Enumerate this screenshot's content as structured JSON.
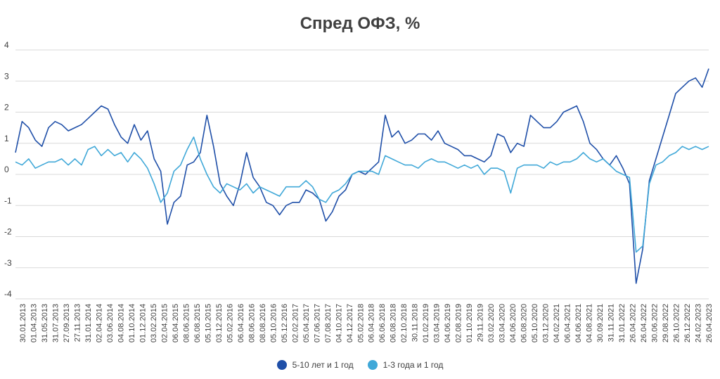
{
  "chart_data": {
    "type": "line",
    "title": "Спред ОФЗ, %",
    "ylim": [
      -4,
      4
    ],
    "y_ticks": [
      "4",
      "3",
      "2",
      "1",
      "0",
      "-1",
      "-2",
      "-3",
      "-4"
    ],
    "grid": "horizontal",
    "legend_position": "bottom",
    "x_tick_labels": [
      "30.01.2013",
      "01.04.2013",
      "31.05.2013",
      "31.07.2013",
      "27.09.2013",
      "27.11.2013",
      "31.01.2014",
      "02.04.2014",
      "03.06.2014",
      "04.08.2014",
      "01.10.2014",
      "01.12.2014",
      "03.02.2015",
      "02.04.2015",
      "06.04.2015",
      "08.06.2015",
      "06.08.2015",
      "05.10.2015",
      "03.12.2015",
      "05.02.2016",
      "06.04.2016",
      "08.06.2016",
      "08.08.2016",
      "05.10.2016",
      "05.12.2016",
      "02.02.2017",
      "05.04.2017",
      "07.06.2017",
      "07.08.2017",
      "04.10.2017",
      "04.12.2017",
      "05.02.2018",
      "06.04.2018",
      "06.06.2018",
      "06.08.2018",
      "02.10.2018",
      "30.11.2018",
      "01.02.2019",
      "03.04.2019",
      "04.06.2019",
      "02.08.2019",
      "01.10.2019",
      "29.11.2019",
      "03.02.2020",
      "03.04.2020",
      "04.06.2020",
      "06.08.2020",
      "05.10.2020",
      "03.12.2020",
      "04.02.2021",
      "06.04.2021",
      "04.06.2021",
      "04.08.2021",
      "30.09.2021",
      "31.11.2021",
      "31.01.2022",
      "26.04.2022",
      "26.04.2022",
      "30.06.2022",
      "29.08.2022",
      "26.10.2022",
      "26.12.2022",
      "24.02.2023",
      "26.04.2023"
    ],
    "series": [
      {
        "name": "5-10 лет и 1 год",
        "color": "#1f4fa8",
        "values": [
          0.7,
          1.7,
          1.5,
          1.1,
          0.9,
          1.5,
          1.7,
          1.6,
          1.4,
          1.5,
          1.6,
          1.8,
          2.0,
          2.2,
          2.1,
          1.6,
          1.2,
          1.0,
          1.6,
          1.1,
          1.4,
          0.5,
          0.1,
          -1.6,
          -0.9,
          -0.7,
          0.3,
          0.4,
          0.7,
          1.9,
          0.9,
          -0.3,
          -0.7,
          -1.0,
          -0.3,
          0.7,
          -0.1,
          -0.4,
          -0.9,
          -1.0,
          -1.3,
          -1.0,
          -0.9,
          -0.9,
          -0.5,
          -0.6,
          -0.8,
          -1.5,
          -1.2,
          -0.7,
          -0.5,
          0.0,
          0.1,
          0.0,
          0.2,
          0.4,
          1.9,
          1.2,
          1.4,
          1.0,
          1.1,
          1.3,
          1.3,
          1.1,
          1.4,
          1.0,
          0.9,
          0.8,
          0.6,
          0.6,
          0.5,
          0.4,
          0.6,
          1.3,
          1.2,
          0.7,
          1.0,
          0.9,
          1.9,
          1.7,
          1.5,
          1.5,
          1.7,
          2.0,
          2.1,
          2.2,
          1.7,
          1.0,
          0.8,
          0.5,
          0.3,
          0.6,
          0.2,
          -0.3,
          -3.5,
          -2.4,
          -0.2,
          0.5,
          1.2,
          1.9,
          2.6,
          2.8,
          3.0,
          3.1,
          2.8,
          3.4
        ]
      },
      {
        "name": "1-3 года и 1 год",
        "color": "#40a8d8",
        "values": [
          0.4,
          0.3,
          0.5,
          0.2,
          0.3,
          0.4,
          0.4,
          0.5,
          0.3,
          0.5,
          0.3,
          0.8,
          0.9,
          0.6,
          0.8,
          0.6,
          0.7,
          0.4,
          0.7,
          0.5,
          0.2,
          -0.3,
          -0.9,
          -0.6,
          0.1,
          0.3,
          0.8,
          1.2,
          0.5,
          0.0,
          -0.4,
          -0.6,
          -0.3,
          -0.4,
          -0.5,
          -0.3,
          -0.6,
          -0.4,
          -0.5,
          -0.6,
          -0.7,
          -0.4,
          -0.4,
          -0.4,
          -0.2,
          -0.4,
          -0.8,
          -0.9,
          -0.6,
          -0.5,
          -0.3,
          0.0,
          0.1,
          0.1,
          0.1,
          0.0,
          0.6,
          0.5,
          0.4,
          0.3,
          0.3,
          0.2,
          0.4,
          0.5,
          0.4,
          0.4,
          0.3,
          0.2,
          0.3,
          0.2,
          0.3,
          0.0,
          0.2,
          0.2,
          0.1,
          -0.6,
          0.2,
          0.3,
          0.3,
          0.3,
          0.2,
          0.4,
          0.3,
          0.4,
          0.4,
          0.5,
          0.7,
          0.5,
          0.4,
          0.5,
          0.3,
          0.1,
          0.0,
          -0.1,
          -2.5,
          -2.3,
          -0.3,
          0.3,
          0.4,
          0.6,
          0.7,
          0.9,
          0.8,
          0.9,
          0.8,
          0.9
        ]
      }
    ]
  }
}
